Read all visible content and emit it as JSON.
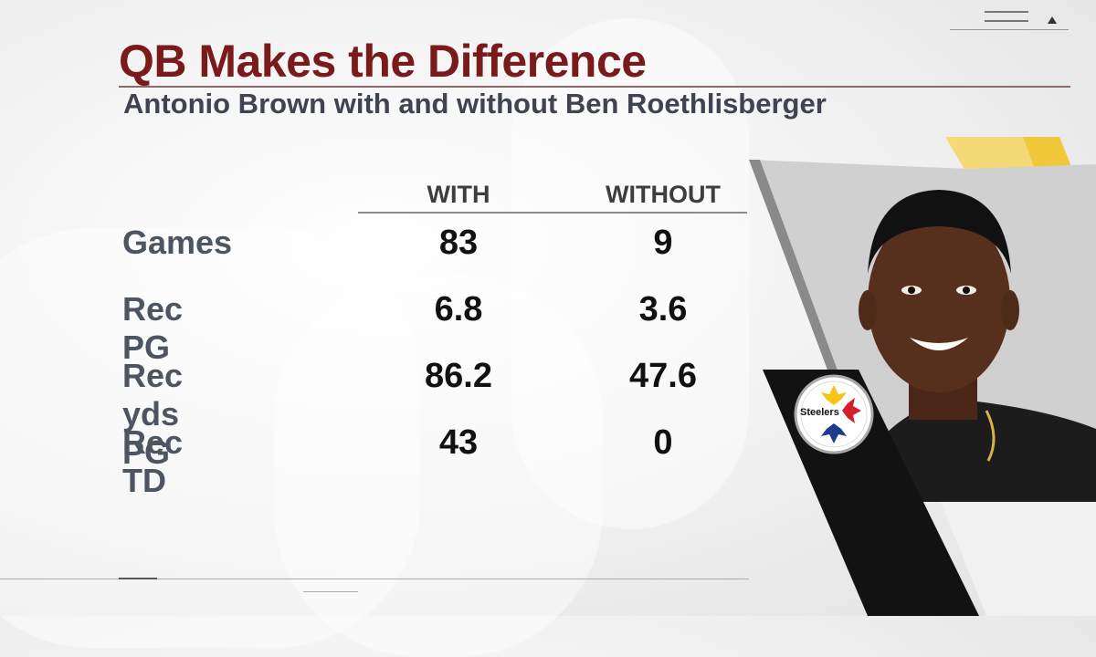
{
  "header": {
    "title": "QB Makes the Difference",
    "subtitle": "Antonio Brown with and without Ben Roethlisberger"
  },
  "table": {
    "columns": [
      "WITH",
      "WITHOUT"
    ],
    "rows": [
      {
        "label": "Games",
        "with": "83",
        "without": "9"
      },
      {
        "label": "Rec PG",
        "with": "6.8",
        "without": "3.6"
      },
      {
        "label": "Rec yds PG",
        "with": "86.2",
        "without": "47.6"
      },
      {
        "label": "Rec TD",
        "with": "43",
        "without": "0"
      }
    ]
  },
  "logo": {
    "text": "Steelers",
    "colors": {
      "yellow": "#f5c518",
      "red": "#d3202a",
      "blue": "#1e3a8a"
    }
  },
  "colors": {
    "title": "#7b1a1a",
    "subtitle": "#3f4450",
    "accent_gold": "#f2c21b"
  }
}
